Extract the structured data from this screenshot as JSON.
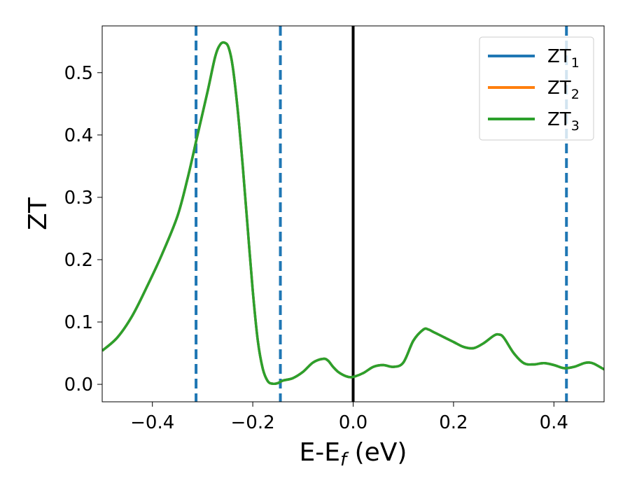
{
  "chart_data": {
    "type": "line",
    "xlabel": "E-E",
    "xlabel_sub": "f",
    "xlabel_unit": " (eV)",
    "ylabel": "ZT",
    "xlim": [
      -0.5,
      0.5
    ],
    "ylim": [
      -0.028,
      0.575
    ],
    "xticks": [
      {
        "value": -0.4,
        "label": "−0.4"
      },
      {
        "value": -0.2,
        "label": "−0.2"
      },
      {
        "value": 0.0,
        "label": "0.0"
      },
      {
        "value": 0.2,
        "label": "0.2"
      },
      {
        "value": 0.4,
        "label": "0.4"
      }
    ],
    "yticks": [
      {
        "value": 0.0,
        "label": "0.0"
      },
      {
        "value": 0.1,
        "label": "0.1"
      },
      {
        "value": 0.2,
        "label": "0.2"
      },
      {
        "value": 0.3,
        "label": "0.3"
      },
      {
        "value": 0.4,
        "label": "0.4"
      },
      {
        "value": 0.5,
        "label": "0.5"
      }
    ],
    "grid": false,
    "legend_position": "top-right",
    "series": [
      {
        "name": "ZT",
        "sub": "1",
        "color": "#1f77b4"
      },
      {
        "name": "ZT",
        "sub": "2",
        "color": "#ff7f0e"
      },
      {
        "name": "ZT",
        "sub": "3",
        "color": "#2ca02c"
      }
    ],
    "x": [
      -0.5,
      -0.47,
      -0.44,
      -0.41,
      -0.38,
      -0.35,
      -0.33,
      -0.31,
      -0.29,
      -0.275,
      -0.265,
      -0.256,
      -0.248,
      -0.24,
      -0.23,
      -0.22,
      -0.21,
      -0.2,
      -0.19,
      -0.18,
      -0.17,
      -0.16,
      -0.15,
      -0.14,
      -0.12,
      -0.1,
      -0.08,
      -0.06,
      -0.05,
      -0.04,
      -0.03,
      -0.02,
      -0.01,
      0.0,
      0.02,
      0.04,
      0.06,
      0.08,
      0.1,
      0.12,
      0.14,
      0.15,
      0.16,
      0.18,
      0.2,
      0.22,
      0.24,
      0.26,
      0.28,
      0.29,
      0.3,
      0.32,
      0.34,
      0.36,
      0.38,
      0.4,
      0.42,
      0.44,
      0.46,
      0.47,
      0.48,
      0.5
    ],
    "y": [
      0.054,
      0.075,
      0.11,
      0.158,
      0.21,
      0.27,
      0.33,
      0.4,
      0.47,
      0.525,
      0.545,
      0.548,
      0.54,
      0.51,
      0.44,
      0.35,
      0.25,
      0.15,
      0.07,
      0.025,
      0.005,
      0.001,
      0.002,
      0.006,
      0.01,
      0.02,
      0.035,
      0.041,
      0.038,
      0.028,
      0.02,
      0.015,
      0.012,
      0.012,
      0.018,
      0.028,
      0.031,
      0.028,
      0.035,
      0.07,
      0.088,
      0.088,
      0.084,
      0.076,
      0.068,
      0.06,
      0.058,
      0.066,
      0.078,
      0.08,
      0.075,
      0.05,
      0.034,
      0.032,
      0.034,
      0.031,
      0.026,
      0.028,
      0.034,
      0.035,
      0.033,
      0.024
    ],
    "vlines": [
      {
        "x": -0.313,
        "style": "dashed",
        "color": "#1f77b4"
      },
      {
        "x": -0.145,
        "style": "dashed",
        "color": "#1f77b4"
      },
      {
        "x": 0.0,
        "style": "solid",
        "color": "#000000"
      },
      {
        "x": 0.425,
        "style": "dashed",
        "color": "#1f77b4"
      }
    ]
  }
}
